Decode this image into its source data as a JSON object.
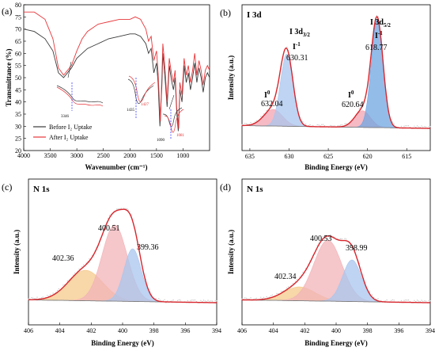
{
  "figure": {
    "panel_a": {
      "label": "(a)",
      "xlabel": "Wavenumber (cm⁻¹)",
      "ylabel": "Transmittance (%)",
      "legend_before": "Before I₂ Uptake",
      "legend_after": "After I₂ Uptake",
      "peak_3346": "3346",
      "peak_1435": "1435",
      "peak_1427": "1427",
      "peak_1090": "1090",
      "peak_1081": "1081",
      "colors": {
        "before": "#3a3a3a",
        "after": "#e8373b",
        "guide": "#3c3cff"
      }
    },
    "panel_b": {
      "label": "(b)",
      "title": "I 3d",
      "xlabel": "Binding Energy (eV)",
      "ylabel": "Intensity (a.u.)",
      "peaks": [
        {
          "name": "I⁰",
          "value": "632.04"
        },
        {
          "name": "I 3d3/2 · I⁻¹",
          "value": "630.31"
        },
        {
          "name": "I⁰",
          "value": "620.64"
        },
        {
          "name": "I 3d5/2 · I⁻¹",
          "value": "618.77"
        }
      ],
      "label_i3d32": "I 3d",
      "sub_32": "3/2",
      "label_i3d52": "I 3d",
      "sub_52": "5/2",
      "label_iminus": "I",
      "sup_minus1": "-1",
      "label_i0": "I",
      "sup_0": "0"
    },
    "panel_c": {
      "label": "(c)",
      "title": "N 1s",
      "xlabel": "Binding Energy (eV)",
      "ylabel": "Intensity (a.u.)",
      "peaks": [
        "402.36",
        "400.51",
        "399.36"
      ]
    },
    "panel_d": {
      "label": "(d)",
      "title": "N 1s",
      "xlabel": "Binding Energy (eV)",
      "ylabel": "Intensity (a.u.)",
      "peaks": [
        "402.34",
        "400.53",
        "398.99"
      ]
    }
  },
  "chart_data": [
    {
      "type": "line",
      "panel": "a",
      "xlabel": "Wavenumber (cm⁻¹)",
      "ylabel": "Transmittance (%)",
      "xlim": [
        4000,
        500
      ],
      "ylim": [
        20,
        80
      ],
      "xticks": [
        4000,
        3500,
        3000,
        2500,
        2000,
        1500,
        1000
      ],
      "yticks": [
        20,
        25,
        30,
        35,
        40,
        45,
        50,
        55,
        60,
        65,
        70,
        75,
        80
      ],
      "series": [
        {
          "name": "Before I₂ Uptake",
          "color": "#3a3a3a",
          "x": [
            4000,
            3800,
            3600,
            3450,
            3346,
            3250,
            3100,
            3000,
            2900,
            2800,
            2600,
            2400,
            2200,
            2000,
            1900,
            1800,
            1700,
            1650,
            1600,
            1550,
            1500,
            1470,
            1435,
            1400,
            1380,
            1340,
            1300,
            1260,
            1220,
            1180,
            1150,
            1120,
            1090,
            1060,
            1020,
            980,
            940,
            900,
            860,
            820,
            780,
            740,
            700,
            660,
            620,
            580,
            540,
            500
          ],
          "y": [
            70,
            69,
            66,
            61,
            52,
            50,
            54,
            58,
            60,
            62,
            64,
            66,
            67,
            68,
            68,
            67,
            64,
            60,
            62,
            52,
            56,
            48,
            30,
            46,
            60,
            50,
            38,
            55,
            49,
            45,
            50,
            36,
            28,
            45,
            40,
            55,
            48,
            52,
            45,
            50,
            56,
            48,
            54,
            50,
            44,
            50,
            52,
            50
          ]
        },
        {
          "name": "After I₂ Uptake",
          "color": "#e8373b",
          "x": [
            4000,
            3800,
            3600,
            3450,
            3346,
            3250,
            3100,
            3000,
            2900,
            2800,
            2600,
            2400,
            2200,
            2000,
            1900,
            1800,
            1700,
            1650,
            1600,
            1550,
            1500,
            1470,
            1427,
            1400,
            1380,
            1340,
            1300,
            1260,
            1220,
            1180,
            1150,
            1120,
            1081,
            1060,
            1020,
            980,
            940,
            900,
            860,
            820,
            780,
            740,
            700,
            660,
            620,
            580,
            540,
            500
          ],
          "y": [
            77,
            77,
            74,
            66,
            54,
            51,
            55,
            61,
            66,
            69,
            72,
            73,
            74,
            74,
            75,
            74,
            70,
            65,
            67,
            57,
            61,
            52,
            32,
            50,
            64,
            54,
            40,
            58,
            52,
            48,
            53,
            38,
            29,
            48,
            43,
            58,
            51,
            55,
            48,
            53,
            60,
            51,
            57,
            53,
            47,
            53,
            55,
            53
          ]
        }
      ]
    },
    {
      "type": "area",
      "panel": "b",
      "xlabel": "Binding Energy (eV)",
      "ylabel": "Intensity (a.u.)",
      "xlim": [
        636,
        612
      ],
      "xticks": [
        635,
        630,
        625,
        620,
        615
      ],
      "components": [
        {
          "center": 632.04,
          "height": 0.12,
          "width": 1.2,
          "color": "#f2a3b0"
        },
        {
          "center": 630.31,
          "height": 0.52,
          "width": 0.8,
          "color": "#a8c6ee"
        },
        {
          "center": 620.64,
          "height": 0.12,
          "width": 1.0,
          "color": "#f2a3b0"
        },
        {
          "center": 618.77,
          "height": 0.78,
          "width": 0.75,
          "color": "#6fa6e2"
        }
      ]
    },
    {
      "type": "area",
      "panel": "c",
      "xlabel": "Binding Energy (eV)",
      "ylabel": "Intensity (a.u.)",
      "xlim": [
        406,
        394
      ],
      "xticks": [
        406,
        404,
        402,
        400,
        398,
        396,
        394
      ],
      "components": [
        {
          "center": 402.36,
          "height": 0.22,
          "width": 1.1,
          "color": "#f5c98b"
        },
        {
          "center": 400.51,
          "height": 0.55,
          "width": 0.8,
          "color": "#f2b3b8"
        },
        {
          "center": 399.36,
          "height": 0.38,
          "width": 0.55,
          "color": "#a8c6ee"
        }
      ]
    },
    {
      "type": "area",
      "panel": "d",
      "xlabel": "Binding Energy (eV)",
      "ylabel": "Intensity (a.u.)",
      "xlim": [
        406,
        394
      ],
      "xticks": [
        406,
        404,
        402,
        400,
        398,
        396,
        394
      ],
      "components": [
        {
          "center": 402.34,
          "height": 0.1,
          "width": 1.0,
          "color": "#f5c98b"
        },
        {
          "center": 400.53,
          "height": 0.44,
          "width": 0.9,
          "color": "#f2b3b8"
        },
        {
          "center": 398.99,
          "height": 0.3,
          "width": 0.6,
          "color": "#a8c6ee"
        }
      ]
    }
  ]
}
